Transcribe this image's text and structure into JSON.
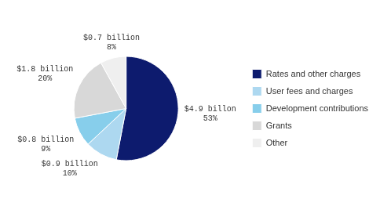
{
  "chart_data": {
    "type": "pie",
    "categories": [
      "Rates and other charges",
      "User fees and charges",
      "Development contributions",
      "Grants",
      "Other"
    ],
    "values": [
      53,
      10,
      9,
      20,
      8
    ],
    "value_labels": [
      "53%",
      "10%",
      "9%",
      "20%",
      "8%"
    ],
    "amounts": [
      "$4.9 billon",
      "$0.9 billion",
      "$0.8 billion",
      "$1.8 billion",
      "$0.7 billion"
    ],
    "colors": [
      "#0d1b6e",
      "#add8f0",
      "#87ceeb",
      "#d8d8d8",
      "#efefef"
    ],
    "data_labels": true,
    "legend": "right"
  }
}
